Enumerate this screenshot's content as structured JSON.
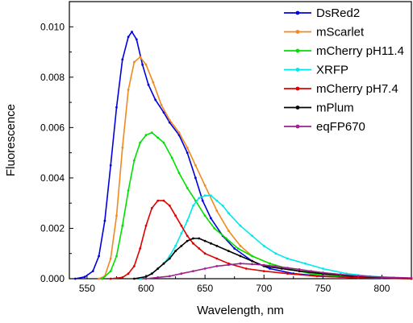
{
  "chart_data": {
    "type": "line",
    "title": "",
    "xlabel": "Wavelength, nm",
    "ylabel": "Fluorescence",
    "xlim": [
      535,
      825
    ],
    "ylim": [
      0,
      0.011
    ],
    "x_ticks": [
      "550",
      "600",
      "650",
      "700",
      "750",
      "800"
    ],
    "y_ticks": [
      "0.000",
      "0.002",
      "0.004",
      "0.006",
      "0.008",
      "0.010"
    ],
    "legend_position": "top-right",
    "grid": false,
    "series": [
      {
        "name": "DsRed2",
        "color": "#0000e0",
        "points": [
          [
            540,
            0
          ],
          [
            548,
            7e-05
          ],
          [
            555,
            0.0003
          ],
          [
            560,
            0.0009
          ],
          [
            565,
            0.0023
          ],
          [
            570,
            0.0045
          ],
          [
            575,
            0.0068
          ],
          [
            580,
            0.0087
          ],
          [
            585,
            0.0096
          ],
          [
            588,
            0.0098
          ],
          [
            592,
            0.0095
          ],
          [
            597,
            0.0085
          ],
          [
            602,
            0.0077
          ],
          [
            608,
            0.0071
          ],
          [
            615,
            0.0066
          ],
          [
            620,
            0.0062
          ],
          [
            628,
            0.0057
          ],
          [
            635,
            0.005
          ],
          [
            642,
            0.004
          ],
          [
            648,
            0.0031
          ],
          [
            655,
            0.0024
          ],
          [
            665,
            0.0017
          ],
          [
            675,
            0.0012
          ],
          [
            690,
            0.0007
          ],
          [
            705,
            0.0004
          ],
          [
            725,
            0.0002
          ],
          [
            750,
            0.0001
          ],
          [
            780,
            3e-05
          ],
          [
            825,
            0
          ]
        ]
      },
      {
        "name": "mScarlet",
        "color": "#f08a1f",
        "points": [
          [
            560,
            0
          ],
          [
            565,
            0.0001
          ],
          [
            570,
            0.0008
          ],
          [
            575,
            0.0025
          ],
          [
            580,
            0.0052
          ],
          [
            585,
            0.0075
          ],
          [
            590,
            0.0086
          ],
          [
            595,
            0.0088
          ],
          [
            600,
            0.0085
          ],
          [
            606,
            0.0078
          ],
          [
            613,
            0.0069
          ],
          [
            620,
            0.0063
          ],
          [
            628,
            0.0058
          ],
          [
            635,
            0.0052
          ],
          [
            642,
            0.0045
          ],
          [
            650,
            0.0037
          ],
          [
            660,
            0.0027
          ],
          [
            670,
            0.0019
          ],
          [
            680,
            0.0013
          ],
          [
            690,
            0.0009
          ],
          [
            705,
            0.0006
          ],
          [
            720,
            0.0004
          ],
          [
            740,
            0.0002
          ],
          [
            765,
            0.0001
          ],
          [
            800,
            3e-05
          ],
          [
            825,
            0
          ]
        ]
      },
      {
        "name": "mCherry pH11.4",
        "color": "#00e000",
        "points": [
          [
            563,
            0
          ],
          [
            570,
            0.0003
          ],
          [
            575,
            0.0009
          ],
          [
            580,
            0.0021
          ],
          [
            585,
            0.0035
          ],
          [
            590,
            0.0047
          ],
          [
            595,
            0.0054
          ],
          [
            600,
            0.0057
          ],
          [
            605,
            0.0058
          ],
          [
            610,
            0.0056
          ],
          [
            615,
            0.0054
          ],
          [
            622,
            0.0048
          ],
          [
            628,
            0.0042
          ],
          [
            635,
            0.0036
          ],
          [
            642,
            0.0031
          ],
          [
            650,
            0.0025
          ],
          [
            658,
            0.002
          ],
          [
            668,
            0.0016
          ],
          [
            678,
            0.0012
          ],
          [
            690,
            0.0009
          ],
          [
            705,
            0.0006
          ],
          [
            720,
            0.0004
          ],
          [
            740,
            0.0002
          ],
          [
            765,
            0.0001
          ],
          [
            800,
            3e-05
          ],
          [
            825,
            0
          ]
        ]
      },
      {
        "name": "XRFP",
        "color": "#00e8e8",
        "points": [
          [
            595,
            0
          ],
          [
            600,
            8e-05
          ],
          [
            605,
            0.0002
          ],
          [
            610,
            0.0004
          ],
          [
            615,
            0.0006
          ],
          [
            620,
            0.0009
          ],
          [
            625,
            0.0013
          ],
          [
            630,
            0.0018
          ],
          [
            635,
            0.0023
          ],
          [
            640,
            0.0029
          ],
          [
            645,
            0.0032
          ],
          [
            650,
            0.0033
          ],
          [
            655,
            0.0033
          ],
          [
            660,
            0.0031
          ],
          [
            665,
            0.0029
          ],
          [
            670,
            0.0026
          ],
          [
            680,
            0.0021
          ],
          [
            690,
            0.0017
          ],
          [
            700,
            0.0013
          ],
          [
            710,
            0.001
          ],
          [
            720,
            0.0008
          ],
          [
            735,
            0.0006
          ],
          [
            750,
            0.0004
          ],
          [
            770,
            0.0002
          ],
          [
            790,
            0.0001
          ],
          [
            810,
            4e-05
          ],
          [
            825,
            2e-05
          ]
        ]
      },
      {
        "name": "mCherry pH7.4",
        "color": "#e00000",
        "points": [
          [
            570,
            0
          ],
          [
            580,
            5e-05
          ],
          [
            585,
            0.0002
          ],
          [
            590,
            0.0005
          ],
          [
            595,
            0.0012
          ],
          [
            600,
            0.0021
          ],
          [
            605,
            0.0028
          ],
          [
            610,
            0.0031
          ],
          [
            615,
            0.0031
          ],
          [
            620,
            0.0029
          ],
          [
            625,
            0.0025
          ],
          [
            630,
            0.0021
          ],
          [
            635,
            0.0017
          ],
          [
            640,
            0.0014
          ],
          [
            645,
            0.0012
          ],
          [
            650,
            0.001
          ],
          [
            660,
            0.0008
          ],
          [
            670,
            0.0006
          ],
          [
            685,
            0.0004
          ],
          [
            700,
            0.0003
          ],
          [
            720,
            0.0002
          ],
          [
            745,
            0.0001
          ],
          [
            780,
            4e-05
          ],
          [
            825,
            0
          ]
        ]
      },
      {
        "name": "mPlum",
        "color": "#000000",
        "points": [
          [
            590,
            0
          ],
          [
            600,
            8e-05
          ],
          [
            605,
            0.0002
          ],
          [
            610,
            0.0004
          ],
          [
            615,
            0.0006
          ],
          [
            620,
            0.0008
          ],
          [
            625,
            0.0011
          ],
          [
            630,
            0.0013
          ],
          [
            635,
            0.0015
          ],
          [
            640,
            0.0016
          ],
          [
            645,
            0.0016
          ],
          [
            650,
            0.0015
          ],
          [
            655,
            0.0014
          ],
          [
            660,
            0.0013
          ],
          [
            670,
            0.0011
          ],
          [
            680,
            0.0009
          ],
          [
            690,
            0.0007
          ],
          [
            700,
            0.0005
          ],
          [
            715,
            0.0004
          ],
          [
            730,
            0.0003
          ],
          [
            750,
            0.0002
          ],
          [
            775,
            0.0001
          ],
          [
            800,
            5e-05
          ],
          [
            825,
            2e-05
          ]
        ]
      },
      {
        "name": "eqFP670",
        "color": "#a0208c",
        "points": [
          [
            600,
            0
          ],
          [
            610,
            5e-05
          ],
          [
            620,
            0.0001
          ],
          [
            630,
            0.0002
          ],
          [
            640,
            0.0003
          ],
          [
            650,
            0.0004
          ],
          [
            660,
            0.0005
          ],
          [
            670,
            0.00055
          ],
          [
            680,
            0.0006
          ],
          [
            690,
            0.00058
          ],
          [
            700,
            0.00054
          ],
          [
            710,
            0.00049
          ],
          [
            720,
            0.00043
          ],
          [
            730,
            0.00037
          ],
          [
            740,
            0.0003
          ],
          [
            750,
            0.00024
          ],
          [
            765,
            0.00017
          ],
          [
            780,
            0.00011
          ],
          [
            800,
            6e-05
          ],
          [
            825,
            3e-05
          ]
        ]
      }
    ]
  }
}
